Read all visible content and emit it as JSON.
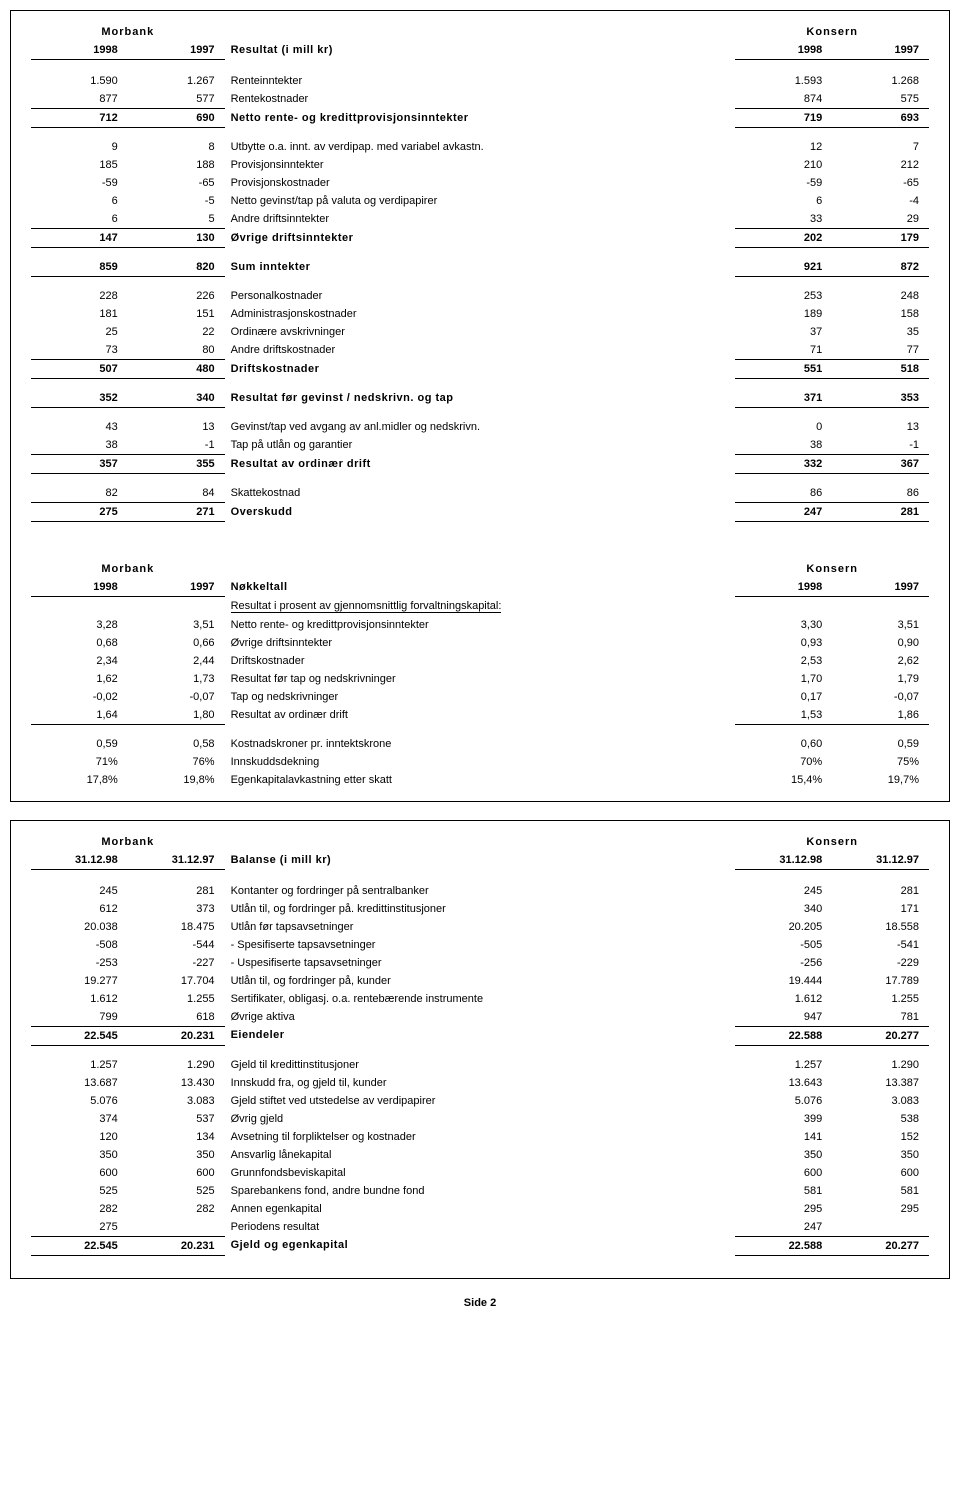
{
  "page_label": "Side 2",
  "tables": [
    {
      "left_header": "Morbank",
      "right_header": "Konsern",
      "col_headers": {
        "m1": "1998",
        "m2": "1997",
        "title": "Resultat (i mill kr)",
        "k1": "1998",
        "k2": "1997"
      },
      "rows": [
        {
          "m1": "1.590",
          "m2": "1.267",
          "label": "Renteinntekter",
          "k1": "1.593",
          "k2": "1.268",
          "bold": false,
          "border": "none"
        },
        {
          "m1": "877",
          "m2": "577",
          "label": "Rentekostnader",
          "k1": "874",
          "k2": "575",
          "bold": false,
          "border": "num-bottom"
        },
        {
          "m1": "712",
          "m2": "690",
          "label": "Netto rente- og kredittprovisjonsinntekter",
          "k1": "719",
          "k2": "693",
          "bold": true,
          "border": "num-bottom"
        },
        {
          "m1": "9",
          "m2": "8",
          "label": "Utbytte o.a. innt. av verdipap. med variabel avkastn.",
          "k1": "12",
          "k2": "7",
          "bold": false,
          "border": "none"
        },
        {
          "m1": "185",
          "m2": "188",
          "label": "Provisjonsinntekter",
          "k1": "210",
          "k2": "212",
          "bold": false,
          "border": "none"
        },
        {
          "m1": "-59",
          "m2": "-65",
          "label": "Provisjonskostnader",
          "k1": "-59",
          "k2": "-65",
          "bold": false,
          "border": "none"
        },
        {
          "m1": "6",
          "m2": "-5",
          "label": "Netto gevinst/tap på valuta og verdipapirer",
          "k1": "6",
          "k2": "-4",
          "bold": false,
          "border": "none"
        },
        {
          "m1": "6",
          "m2": "5",
          "label": "Andre driftsinntekter",
          "k1": "33",
          "k2": "29",
          "bold": false,
          "border": "num-bottom"
        },
        {
          "m1": "147",
          "m2": "130",
          "label": "Øvrige driftsinntekter",
          "k1": "202",
          "k2": "179",
          "bold": true,
          "border": "num-bottom"
        },
        {
          "m1": "859",
          "m2": "820",
          "label": "Sum inntekter",
          "k1": "921",
          "k2": "872",
          "bold": true,
          "border": "num-bottom"
        },
        {
          "m1": "228",
          "m2": "226",
          "label": "Personalkostnader",
          "k1": "253",
          "k2": "248",
          "bold": false,
          "border": "none"
        },
        {
          "m1": "181",
          "m2": "151",
          "label": "Administrasjonskostnader",
          "k1": "189",
          "k2": "158",
          "bold": false,
          "border": "none"
        },
        {
          "m1": "25",
          "m2": "22",
          "label": "Ordinære avskrivninger",
          "k1": "37",
          "k2": "35",
          "bold": false,
          "border": "none"
        },
        {
          "m1": "73",
          "m2": "80",
          "label": "Andre driftskostnader",
          "k1": "71",
          "k2": "77",
          "bold": false,
          "border": "num-bottom"
        },
        {
          "m1": "507",
          "m2": "480",
          "label": "Driftskostnader",
          "k1": "551",
          "k2": "518",
          "bold": true,
          "border": "num-bottom"
        },
        {
          "m1": "352",
          "m2": "340",
          "label": "Resultat før gevinst / nedskrivn. og tap",
          "k1": "371",
          "k2": "353",
          "bold": true,
          "border": "num-bottom"
        },
        {
          "m1": "43",
          "m2": "13",
          "label": "Gevinst/tap ved avgang av anl.midler og nedskrivn.",
          "k1": "0",
          "k2": "13",
          "bold": false,
          "border": "none"
        },
        {
          "m1": "38",
          "m2": "-1",
          "label": "Tap på utlån og garantier",
          "k1": "38",
          "k2": "-1",
          "bold": false,
          "border": "num-bottom"
        },
        {
          "m1": "357",
          "m2": "355",
          "label": "Resultat av ordinær drift",
          "k1": "332",
          "k2": "367",
          "bold": true,
          "border": "num-bottom"
        },
        {
          "m1": "82",
          "m2": "84",
          "label": "Skattekostnad",
          "k1": "86",
          "k2": "86",
          "bold": false,
          "border": "num-bottom"
        },
        {
          "m1": "275",
          "m2": "271",
          "label": "Overskudd",
          "k1": "247",
          "k2": "281",
          "bold": true,
          "border": "num-bottom"
        }
      ],
      "spacer_after_header": true,
      "sub": {
        "left_header": "Morbank",
        "right_header": "Konsern",
        "col_headers": {
          "m1": "1998",
          "m2": "1997",
          "title": "Nøkkeltall",
          "k1": "1998",
          "k2": "1997"
        },
        "subtitle": "Resultat i prosent av gjennomsnittlig forvaltningskapital:",
        "rows": [
          {
            "m1": "3,28",
            "m2": "3,51",
            "label": "Netto rente- og kredittprovisjonsinntekter",
            "k1": "3,30",
            "k2": "3,51",
            "bold": false,
            "border": "none"
          },
          {
            "m1": "0,68",
            "m2": "0,66",
            "label": "Øvrige driftsinntekter",
            "k1": "0,93",
            "k2": "0,90",
            "bold": false,
            "border": "none"
          },
          {
            "m1": "2,34",
            "m2": "2,44",
            "label": "Driftskostnader",
            "k1": "2,53",
            "k2": "2,62",
            "bold": false,
            "border": "none"
          },
          {
            "m1": "1,62",
            "m2": "1,73",
            "label": "Resultat før tap og nedskrivninger",
            "k1": "1,70",
            "k2": "1,79",
            "bold": false,
            "border": "none"
          },
          {
            "m1": "-0,02",
            "m2": "-0,07",
            "label": "Tap og nedskrivninger",
            "k1": "0,17",
            "k2": "-0,07",
            "bold": false,
            "border": "none"
          },
          {
            "m1": "1,64",
            "m2": "1,80",
            "label": "Resultat av ordinær drift",
            "k1": "1,53",
            "k2": "1,86",
            "bold": false,
            "border": "num-bottom"
          },
          {
            "m1": "0,59",
            "m2": "0,58",
            "label": "Kostnadskroner pr. inntektskrone",
            "k1": "0,60",
            "k2": "0,59",
            "bold": false,
            "border": "none"
          },
          {
            "m1": "71%",
            "m2": "76%",
            "label": "Innskuddsdekning",
            "k1": "70%",
            "k2": "75%",
            "bold": false,
            "border": "none"
          },
          {
            "m1": "17,8%",
            "m2": "19,8%",
            "label": "Egenkapitalavkastning etter skatt",
            "k1": "15,4%",
            "k2": "19,7%",
            "bold": false,
            "border": "none"
          }
        ]
      }
    },
    {
      "left_header": "Morbank",
      "right_header": "Konsern",
      "col_headers": {
        "m1": "31.12.98",
        "m2": "31.12.97",
        "title": "Balanse (i mill kr)",
        "k1": "31.12.98",
        "k2": "31.12.97"
      },
      "rows": [
        {
          "m1": "245",
          "m2": "281",
          "label": "Kontanter og fordringer på sentralbanker",
          "k1": "245",
          "k2": "281",
          "bold": false,
          "border": "none"
        },
        {
          "m1": "612",
          "m2": "373",
          "label": "Utlån til, og fordringer på. kredittinstitusjoner",
          "k1": "340",
          "k2": "171",
          "bold": false,
          "border": "none"
        },
        {
          "m1": "20.038",
          "m2": "18.475",
          "label": "Utlån før tapsavsetninger",
          "k1": "20.205",
          "k2": "18.558",
          "bold": false,
          "border": "none"
        },
        {
          "m1": "-508",
          "m2": "-544",
          "label": "- Spesifiserte tapsavsetninger",
          "k1": "-505",
          "k2": "-541",
          "bold": false,
          "border": "none"
        },
        {
          "m1": "-253",
          "m2": "-227",
          "label": "- Uspesifiserte tapsavsetninger",
          "k1": "-256",
          "k2": "-229",
          "bold": false,
          "border": "none"
        },
        {
          "m1": "19.277",
          "m2": "17.704",
          "label": "Utlån til, og fordringer på, kunder",
          "k1": "19.444",
          "k2": "17.789",
          "bold": false,
          "border": "none"
        },
        {
          "m1": "1.612",
          "m2": "1.255",
          "label": "Sertifikater, obligasj. o.a. rentebærende instrumente",
          "k1": "1.612",
          "k2": "1.255",
          "bold": false,
          "border": "none"
        },
        {
          "m1": "799",
          "m2": "618",
          "label": "Øvrige aktiva",
          "k1": "947",
          "k2": "781",
          "bold": false,
          "border": "num-bottom"
        },
        {
          "m1": "22.545",
          "m2": "20.231",
          "label": "Eiendeler",
          "k1": "22.588",
          "k2": "20.277",
          "bold": true,
          "border": "num-bottom"
        },
        {
          "m1": "1.257",
          "m2": "1.290",
          "label": "Gjeld til kredittinstitusjoner",
          "k1": "1.257",
          "k2": "1.290",
          "bold": false,
          "border": "none"
        },
        {
          "m1": "13.687",
          "m2": "13.430",
          "label": "Innskudd fra, og gjeld til, kunder",
          "k1": "13.643",
          "k2": "13.387",
          "bold": false,
          "border": "none"
        },
        {
          "m1": "5.076",
          "m2": "3.083",
          "label": "Gjeld stiftet ved utstedelse av verdipapirer",
          "k1": "5.076",
          "k2": "3.083",
          "bold": false,
          "border": "none"
        },
        {
          "m1": "374",
          "m2": "537",
          "label": "Øvrig gjeld",
          "k1": "399",
          "k2": "538",
          "bold": false,
          "border": "none"
        },
        {
          "m1": "120",
          "m2": "134",
          "label": "Avsetning til forpliktelser og kostnader",
          "k1": "141",
          "k2": "152",
          "bold": false,
          "border": "none"
        },
        {
          "m1": "350",
          "m2": "350",
          "label": "Ansvarlig lånekapital",
          "k1": "350",
          "k2": "350",
          "bold": false,
          "border": "none"
        },
        {
          "m1": "600",
          "m2": "600",
          "label": "Grunnfondsbeviskapital",
          "k1": "600",
          "k2": "600",
          "bold": false,
          "border": "none"
        },
        {
          "m1": "525",
          "m2": "525",
          "label": "Sparebankens fond, andre bundne fond",
          "k1": "581",
          "k2": "581",
          "bold": false,
          "border": "none"
        },
        {
          "m1": "282",
          "m2": "282",
          "label": "Annen egenkapital",
          "k1": "295",
          "k2": "295",
          "bold": false,
          "border": "none"
        },
        {
          "m1": "275",
          "m2": "",
          "label": "Periodens resultat",
          "k1": "247",
          "k2": "",
          "bold": false,
          "border": "num-bottom"
        },
        {
          "m1": "22.545",
          "m2": "20.231",
          "label": "Gjeld og egenkapital",
          "k1": "22.588",
          "k2": "20.277",
          "bold": true,
          "border": "num-bottom"
        }
      ],
      "spacer_after_header": true
    }
  ]
}
